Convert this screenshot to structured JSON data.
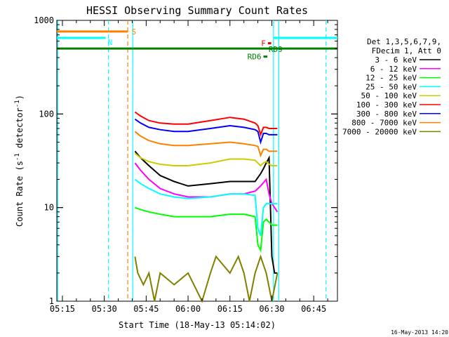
{
  "chart_data": {
    "type": "line",
    "title": "HESSI Observing Summary Count Rates",
    "xlabel": "Start Time (18-May-13 05:14:02)",
    "ylabel_prefix": "Count Rate (s",
    "ylabel_sup1": "-1",
    "ylabel_mid": " detector",
    "ylabel_sup2": "-1",
    "ylabel_suffix": ")",
    "x_scale": "time (minutes)",
    "xlim": [
      313.0,
      413.5
    ],
    "x_ticks": [
      {
        "value": 315,
        "label": "05:15"
      },
      {
        "value": 330,
        "label": "05:30"
      },
      {
        "value": 345,
        "label": "05:45"
      },
      {
        "value": 360,
        "label": "06:00"
      },
      {
        "value": 375,
        "label": "06:15"
      },
      {
        "value": 390,
        "label": "06:30"
      },
      {
        "value": 405,
        "label": "06:45"
      }
    ],
    "y_scale": "log",
    "ylim": [
      1,
      1000
    ],
    "y_ticks": [
      {
        "value": 1,
        "label": "1"
      },
      {
        "value": 10,
        "label": "10"
      },
      {
        "value": 100,
        "label": "100"
      },
      {
        "value": 1000,
        "label": "1000"
      }
    ],
    "legend_header": [
      "Det 1,3,5,6,7,9,",
      "FDecim 1, Att 0"
    ],
    "legend_position": "right",
    "series": [
      {
        "name": "3 - 6 keV",
        "color": "#000000",
        "x": [
          341,
          343,
          346,
          350,
          355,
          360,
          368,
          375,
          380,
          384,
          386,
          387,
          388,
          389,
          390,
          391,
          392
        ],
        "values": [
          40,
          34,
          28,
          22,
          19,
          17,
          18,
          19,
          19,
          19,
          23,
          26,
          30,
          34,
          3,
          2,
          2
        ]
      },
      {
        "name": "6 - 12 keV",
        "color": "#ff00ff",
        "x": [
          341,
          343,
          346,
          350,
          355,
          360,
          368,
          375,
          380,
          384,
          386,
          388,
          389,
          390,
          391,
          392
        ],
        "values": [
          30,
          25,
          20,
          16,
          14,
          13,
          13,
          14,
          14,
          15,
          17,
          20,
          14,
          11,
          10,
          9
        ]
      },
      {
        "name": "12 - 25 keV",
        "color": "#00ff00",
        "x": [
          341,
          343,
          346,
          350,
          355,
          360,
          368,
          375,
          380,
          384,
          385,
          386,
          387,
          388,
          389,
          390,
          391,
          392
        ],
        "values": [
          10,
          9.5,
          9,
          8.5,
          8,
          8,
          8,
          8.5,
          8.5,
          8,
          4,
          3.5,
          7,
          7.5,
          7,
          6.5,
          6.5,
          6.5
        ]
      },
      {
        "name": "25 - 50 keV",
        "color": "#00ffff",
        "x": [
          341,
          343,
          346,
          350,
          355,
          360,
          368,
          375,
          380,
          384,
          385,
          386,
          387,
          388,
          389,
          390,
          391,
          392
        ],
        "values": [
          20,
          18,
          16,
          14,
          13,
          12.5,
          13,
          14,
          14,
          13.5,
          6,
          5,
          10,
          11,
          11,
          11,
          11,
          11
        ]
      },
      {
        "name": "50 - 100 keV",
        "color": "#cccc00",
        "x": [
          341,
          343,
          346,
          350,
          355,
          360,
          368,
          375,
          380,
          384,
          386,
          387,
          388,
          389,
          390,
          391,
          392
        ],
        "values": [
          38,
          34,
          31,
          29,
          28,
          28,
          30,
          33,
          33,
          32,
          28,
          30,
          31,
          29,
          28,
          28,
          28
        ]
      },
      {
        "name": "100 - 300 keV",
        "color": "#ff0000",
        "x": [
          341,
          343,
          346,
          350,
          355,
          360,
          368,
          375,
          380,
          384,
          385,
          386,
          387,
          388,
          389,
          390,
          391,
          392
        ],
        "values": [
          105,
          95,
          85,
          80,
          78,
          78,
          85,
          92,
          88,
          80,
          75,
          60,
          72,
          72,
          70,
          70,
          70,
          70
        ]
      },
      {
        "name": "300 - 800 keV",
        "color": "#0000ff",
        "x": [
          341,
          343,
          346,
          350,
          355,
          360,
          368,
          375,
          380,
          384,
          385,
          386,
          387,
          388,
          389,
          390,
          391,
          392
        ],
        "values": [
          88,
          80,
          72,
          68,
          65,
          65,
          70,
          75,
          72,
          68,
          65,
          50,
          62,
          62,
          60,
          60,
          60,
          60
        ]
      },
      {
        "name": "800 - 7000 keV",
        "color": "#ff8000",
        "x": [
          341,
          343,
          346,
          350,
          355,
          360,
          368,
          375,
          380,
          384,
          385,
          386,
          387,
          388,
          389,
          390,
          391,
          392
        ],
        "values": [
          65,
          58,
          52,
          48,
          46,
          46,
          48,
          50,
          48,
          46,
          45,
          36,
          42,
          42,
          40,
          40,
          40,
          40
        ]
      },
      {
        "name": "7000 - 20000 keV",
        "color": "#808000",
        "x": [
          341,
          342,
          344,
          346,
          348,
          350,
          355,
          360,
          365,
          368,
          370,
          375,
          378,
          380,
          382,
          384,
          386,
          388,
          390,
          392
        ],
        "values": [
          3,
          2,
          1.5,
          2,
          1,
          2,
          1.5,
          2,
          1,
          2,
          3,
          2,
          3,
          2,
          1,
          2,
          3,
          2,
          1,
          2
        ]
      }
    ],
    "flag_bars": [
      {
        "label": "S",
        "color": "#ff8000",
        "y": 760,
        "segments": [
          [
            313.0,
            338.5
          ]
        ]
      },
      {
        "label": "N",
        "color": "#00ffff",
        "y": 650,
        "segments": [
          [
            313.0,
            330.5
          ],
          [
            390.5,
            413.5
          ]
        ]
      },
      {
        "label": "F",
        "color": "#ff0000",
        "y": 570,
        "segments": [
          [
            388.6,
            389.8
          ]
        ]
      },
      {
        "label": "RD9",
        "color": "#008000",
        "y": 500,
        "segments": [
          [
            313.0,
            413.5
          ]
        ]
      },
      {
        "label": "RD6",
        "color": "#008000",
        "y": 410,
        "segments": [
          [
            387.0,
            388.4
          ]
        ]
      }
    ],
    "vertical_markers": [
      {
        "color": "#00ffff",
        "style": "solid",
        "x": 313.3
      },
      {
        "color": "#00ffff",
        "style": "dashed",
        "x": 331.5
      },
      {
        "color": "#ff8000",
        "style": "dashed",
        "x": 338.4
      },
      {
        "color": "#00ffff",
        "style": "solid",
        "x": 340.2
      },
      {
        "color": "#00ffff",
        "style": "solid",
        "x": 390.6
      },
      {
        "color": "#00ffff",
        "style": "solid",
        "x": 392.5
      },
      {
        "color": "#00ffff",
        "style": "dashed",
        "x": 409.4
      }
    ],
    "grid": false
  },
  "footer": {
    "stamp": "16-May-2013 14:20"
  }
}
